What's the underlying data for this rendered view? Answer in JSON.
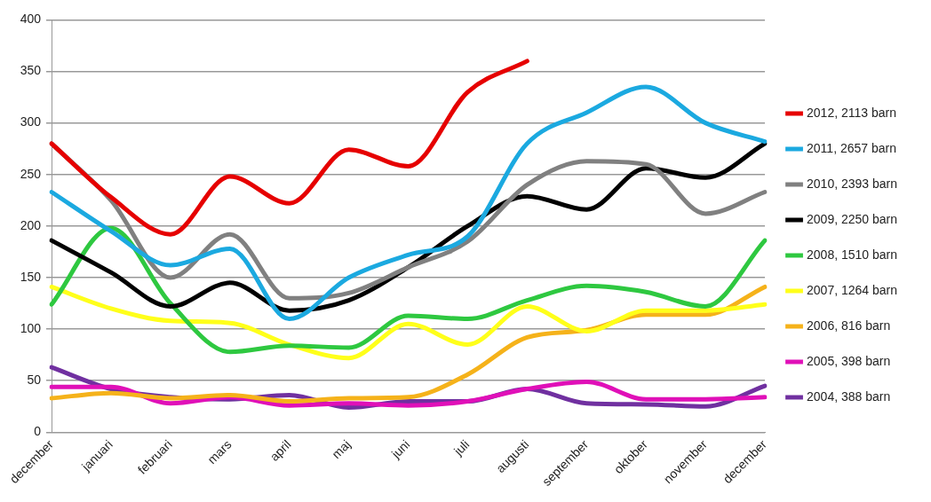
{
  "chart_data": {
    "type": "line",
    "categories": [
      "december",
      "januari",
      "februari",
      "mars",
      "april",
      "maj",
      "juni",
      "juli",
      "augusti",
      "september",
      "oktober",
      "november",
      "december"
    ],
    "ylim": [
      0,
      400
    ],
    "yticks": [
      0,
      50,
      100,
      150,
      200,
      250,
      300,
      350,
      400
    ],
    "grid": "y",
    "legend": "right",
    "marker": "none",
    "line_style": "solid",
    "series": [
      {
        "name": "2012, 2113 barn",
        "color": "#e60000",
        "values": [
          280,
          228,
          192,
          248,
          222,
          274,
          258,
          330,
          360,
          null,
          null,
          null,
          null
        ]
      },
      {
        "name": "2011, 2657 barn",
        "color": "#1ba9e0",
        "values": [
          233,
          195,
          162,
          178,
          110,
          150,
          172,
          190,
          280,
          310,
          335,
          300,
          282
        ]
      },
      {
        "name": "2010, 2393 barn",
        "color": "#808080",
        "values": [
          280,
          225,
          150,
          192,
          130,
          135,
          160,
          185,
          240,
          263,
          260,
          212,
          233
        ]
      },
      {
        "name": "2009, 2250 barn",
        "color": "#000000",
        "values": [
          186,
          155,
          122,
          145,
          118,
          128,
          160,
          200,
          229,
          216,
          256,
          247,
          280
        ]
      },
      {
        "name": "2008, 1510 barn",
        "color": "#2ec840",
        "values": [
          124,
          198,
          125,
          78,
          84,
          82,
          113,
          110,
          128,
          142,
          136,
          122,
          186
        ]
      },
      {
        "name": "2007, 1264 barn",
        "color": "#ffff1a",
        "values": [
          141,
          120,
          108,
          106,
          85,
          72,
          105,
          85,
          122,
          98,
          118,
          118,
          124
        ]
      },
      {
        "name": "2006, 816 barn",
        "color": "#f5b21a",
        "values": [
          33,
          38,
          33,
          36,
          30,
          33,
          34,
          56,
          92,
          99,
          114,
          114,
          141
        ]
      },
      {
        "name": "2005, 398 barn",
        "color": "#e010b8",
        "values": [
          44,
          44,
          28,
          34,
          26,
          28,
          26,
          30,
          42,
          49,
          32,
          32,
          34
        ]
      },
      {
        "name": "2004, 388 barn",
        "color": "#7030a0",
        "values": [
          63,
          42,
          34,
          32,
          36,
          24,
          30,
          30,
          42,
          28,
          27,
          25,
          45
        ]
      }
    ]
  }
}
